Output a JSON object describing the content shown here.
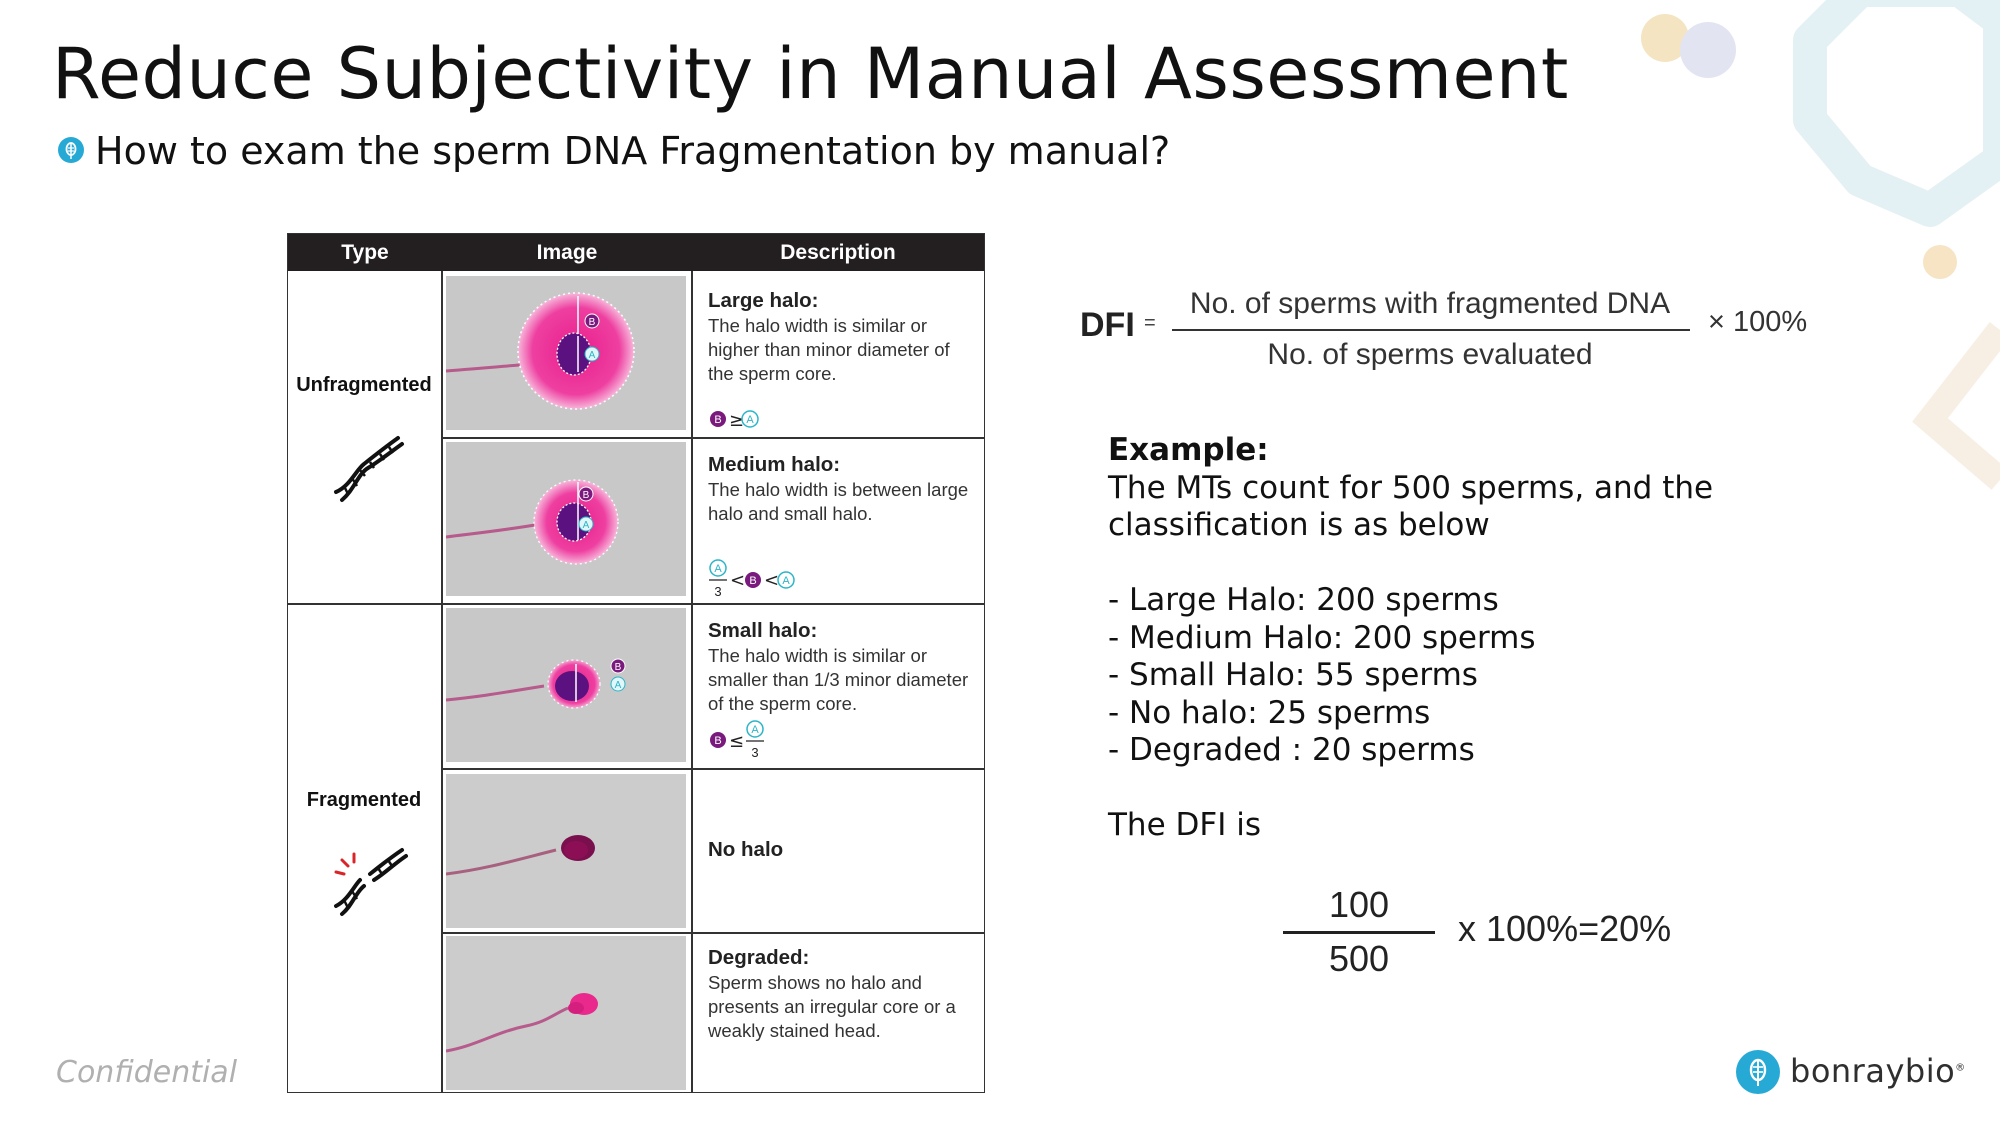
{
  "slide": {
    "title": "Reduce Subjectivity in Manual Assessment",
    "subtitle": "How to exam the sperm DNA Fragmentation by manual?",
    "confidential": "Confidential",
    "brand": "bonraybio",
    "brand_mark": "®"
  },
  "table": {
    "headers": [
      "Type",
      "Image",
      "Description"
    ],
    "types": [
      "Unfragmented",
      "Fragmented"
    ],
    "rows": [
      {
        "title": "Large halo:",
        "text": "The halo width is similar or higher than minor diameter of the sperm core.",
        "formula": "B≥A"
      },
      {
        "title": "Medium halo:",
        "text": "The halo width is between large halo and small halo.",
        "formula": "A/3<B<A"
      },
      {
        "title": "Small halo:",
        "text": "The halo width is similar or smaller than 1/3 minor diameter of the sperm core.",
        "formula": "B≤A/3"
      },
      {
        "title": "",
        "text": "No halo",
        "formula": ""
      },
      {
        "title": "Degraded:",
        "text": "Sperm shows no halo and presents an irregular core or a weakly stained head.",
        "formula": ""
      }
    ],
    "markers": {
      "a": "A",
      "b": "B",
      "three": "3"
    },
    "colors": {
      "header_bg": "#231f20",
      "halo": "#e91e8c",
      "core": "#5b1280",
      "marker_b": "#7a1a7e",
      "marker_a": "#2bb5c8"
    }
  },
  "dfi": {
    "label": "DFI",
    "equals": "=",
    "numerator": "No. of sperms with fragmented DNA",
    "denominator": "No. of sperms evaluated",
    "multiplier": "× 100%"
  },
  "example": {
    "heading": "Example:",
    "intro_line1": "The MTs count for 500 sperms, and the",
    "intro_line2": "classification is as below",
    "items": [
      "- Large Halo:  200 sperms",
      "- Medium Halo: 200 sperms",
      "- Small Halo: 55 sperms",
      "- No halo: 25 sperms",
      "- Degraded : 20 sperms"
    ],
    "conclusion": "The DFI is",
    "result_numerator": "100",
    "result_denominator": "500",
    "result_tail": "x 100%=20%"
  }
}
